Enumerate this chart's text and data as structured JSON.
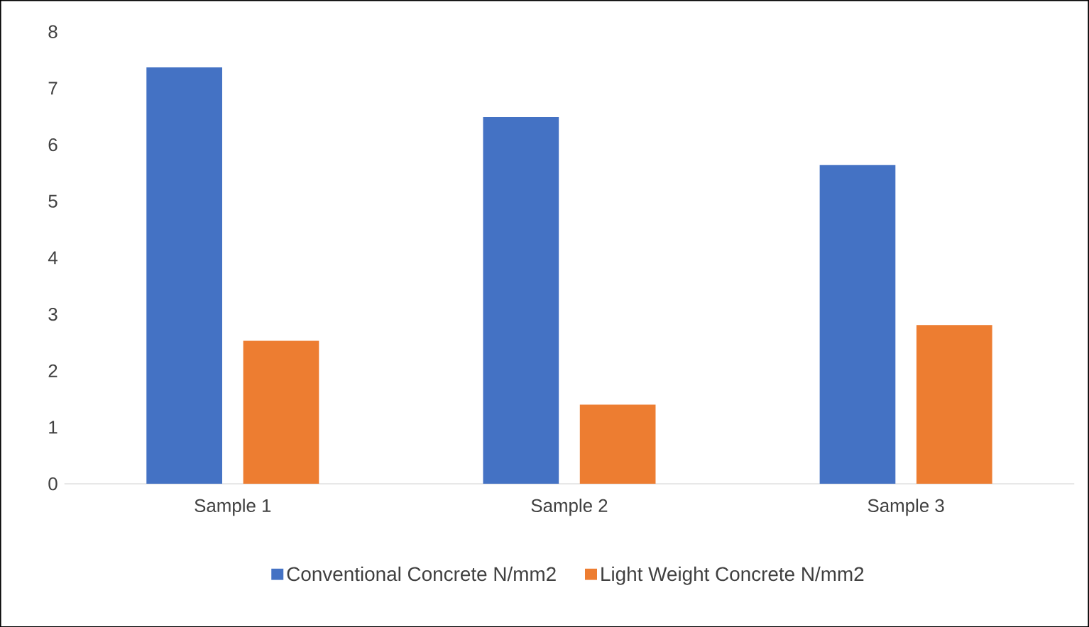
{
  "chart_data": {
    "type": "bar",
    "categories": [
      "Sample 1",
      "Sample 2",
      "Sample 3"
    ],
    "series": [
      {
        "name": "Conventional Concrete N/mm2",
        "color": "#4472c4",
        "values": [
          7.37,
          6.49,
          5.64
        ]
      },
      {
        "name": "Light Weight Concrete N/mm2",
        "color": "#ed7d31",
        "values": [
          2.53,
          1.4,
          2.81
        ]
      }
    ],
    "ylim": [
      0,
      8
    ],
    "yticks": [
      0,
      1,
      2,
      3,
      4,
      5,
      6,
      7,
      8
    ],
    "legend": "bottom"
  }
}
